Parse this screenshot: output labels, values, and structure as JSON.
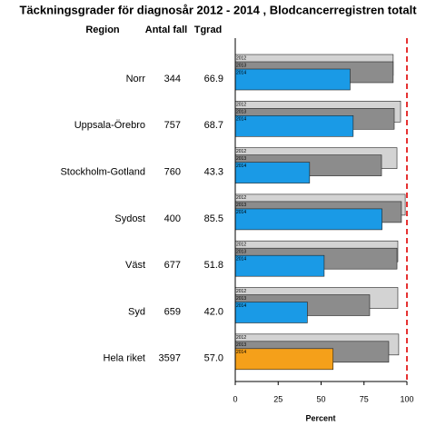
{
  "chart_data": {
    "type": "bar",
    "orientation": "horizontal",
    "title": "Täckningsgrader för diagnosår 2012 - 2014 , Blodcancerregistren totalt",
    "columns": [
      "Region",
      "Antal fall",
      "Tgrad"
    ],
    "categories": [
      "Norr",
      "Uppsala-Örebro",
      "Stockholm-Gotland",
      "Sydost",
      "Väst",
      "Syd",
      "Hela riket"
    ],
    "cases": [
      344,
      757,
      760,
      400,
      677,
      659,
      3597
    ],
    "series": [
      {
        "name": "2012",
        "color": "#d3d3d3",
        "values": [
          92,
          96.3,
          94.2,
          99,
          94.7,
          94.7,
          95.2
        ]
      },
      {
        "name": "2013",
        "color": "#8c8c8c",
        "values": [
          92,
          92.6,
          85.2,
          96.8,
          94.2,
          78.3,
          89.4
        ]
      },
      {
        "name": "2014",
        "colors": [
          "#1a9ae6",
          "#1a9ae6",
          "#1a9ae6",
          "#1a9ae6",
          "#1a9ae6",
          "#1a9ae6",
          "#f5a01a"
        ],
        "values": [
          66.9,
          68.7,
          43.3,
          85.5,
          51.8,
          42.0,
          57.0
        ],
        "value_labels": [
          "66.9",
          "68.7",
          "43.3",
          "85.5",
          "51.8",
          "42.0",
          "57.0"
        ]
      }
    ],
    "xlabel": "Percent",
    "xlim": [
      0,
      100
    ],
    "xticks": [
      0,
      25,
      50,
      75,
      100
    ],
    "ref_line": 100,
    "ref_color": "#e00000"
  }
}
